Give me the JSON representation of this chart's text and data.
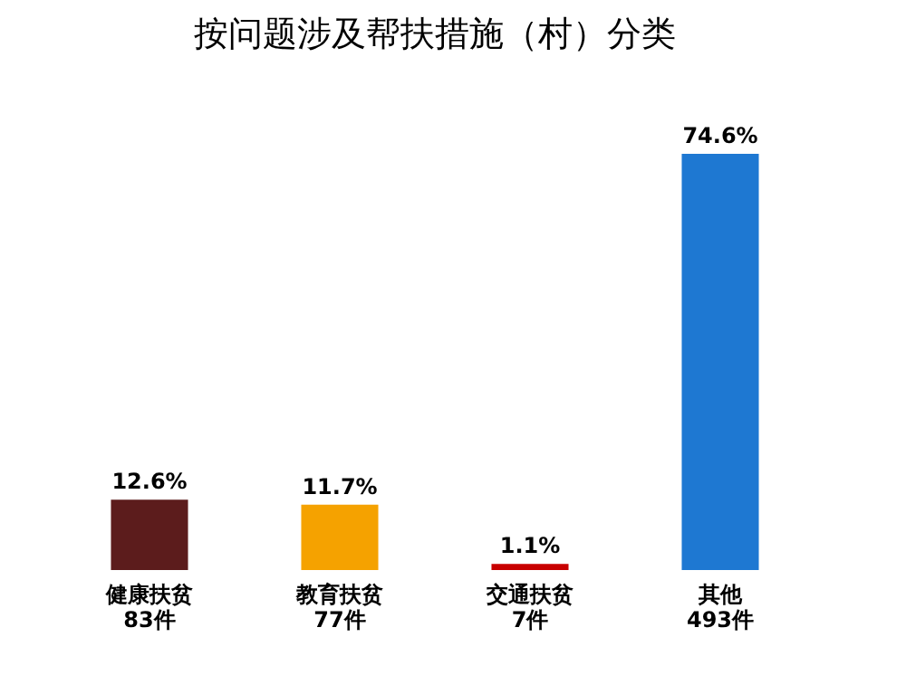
{
  "chart_data": {
    "type": "bar",
    "title": "按问题涉及帮扶措施（村）分类",
    "categories": [
      "健康扶贫\n83件",
      "教育扶贫\n77件",
      "交通扶贫\n7件",
      "其他\n493件"
    ],
    "values": [
      12.6,
      11.7,
      1.1,
      74.6
    ],
    "colors": [
      "#5c1c1c",
      "#f5a200",
      "#c80000",
      "#1e78d2"
    ],
    "value_labels": [
      "12.6%",
      "11.7%",
      "1.1%",
      "74.6%"
    ],
    "grid": false
  }
}
